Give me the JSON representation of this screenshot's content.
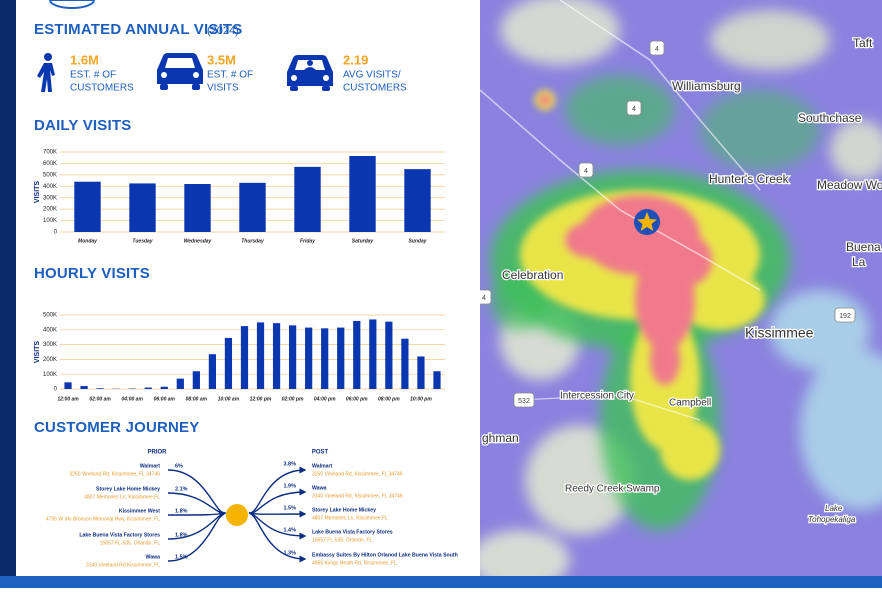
{
  "header": {
    "title": "ESTIMATED ANNUAL VISITS",
    "year": "(2024)"
  },
  "stats": [
    {
      "value": "1.6M",
      "label": [
        "EST. # OF",
        "CUSTOMERS"
      ]
    },
    {
      "value": "3.5M",
      "label": [
        "EST. # OF",
        "VISITS"
      ]
    },
    {
      "value": "2.19",
      "label": [
        "AVG VISITS/",
        "CUSTOMERS"
      ]
    }
  ],
  "chart_data": [
    {
      "type": "bar",
      "title": "DAILY VISITS",
      "y_label": "VISITS",
      "color": "#0a36b0",
      "grid": true,
      "categories": [
        "Monday",
        "Tuesday",
        "Wednesday",
        "Thursday",
        "Friday",
        "Saturday",
        "Sunday"
      ],
      "values": [
        440000,
        425000,
        420000,
        430000,
        570000,
        665000,
        550000
      ],
      "ylim": [
        0,
        700000
      ],
      "yticks": [
        0,
        {
          "value": 100000,
          "label": "100K"
        },
        {
          "value": 200000,
          "label": "200K"
        },
        {
          "value": 300000,
          "label": "300K"
        },
        {
          "value": 400000,
          "label": "400K"
        },
        {
          "value": 500000,
          "label": "500K"
        },
        {
          "value": 600000,
          "label": "600K"
        },
        {
          "value": 700000,
          "label": "700K"
        }
      ]
    },
    {
      "type": "bar",
      "title": "HOURLY VISITS",
      "y_label": "VISITS",
      "color": "#0a36b0",
      "grid": true,
      "categories": [
        "12:00 am",
        null,
        "02:00 am",
        null,
        "04:00 am",
        null,
        "06:00 am",
        null,
        "08:00 am",
        null,
        "10:00 am",
        null,
        "12:00 pm",
        null,
        "02:00 pm",
        null,
        "04:00 pm",
        null,
        "06:00 pm",
        null,
        "08:00 pm",
        null,
        "10:00 pm",
        null
      ],
      "values": [
        45000,
        20000,
        5000,
        2000,
        3000,
        10000,
        15000,
        70000,
        120000,
        235000,
        345000,
        425000,
        450000,
        445000,
        430000,
        415000,
        410000,
        415000,
        460000,
        470000,
        455000,
        340000,
        220000,
        120000
      ],
      "ylim": [
        0,
        500000
      ],
      "yticks": [
        0,
        {
          "value": 100000,
          "label": "100K"
        },
        {
          "value": 200000,
          "label": "200K"
        },
        {
          "value": 300000,
          "label": "300K"
        },
        {
          "value": 400000,
          "label": "400K"
        },
        {
          "value": 500000,
          "label": "500K"
        }
      ]
    }
  ],
  "journey": {
    "title": "CUSTOMER JOURNEY",
    "prior_label": "PRIOR",
    "post_label": "POST",
    "prior": [
      {
        "name": "Walmart",
        "address": "3250 Vineland Rd, Kissimmee, FL 34746",
        "share": "6%"
      },
      {
        "name": "Storey Lake Home Mickey",
        "address": "4807 Memories Ln, Kissimmee,FL",
        "share": "2.1%"
      },
      {
        "name": "Kissimmee West",
        "address": "4795 W Irlo Bronson Memorial Hwy, Kissimmee, FL",
        "share": "1.8%"
      },
      {
        "name": "Lake Buena Vista Factory Stores",
        "address": "15657 FL-535, Orlando, FL",
        "share": "1.8%"
      },
      {
        "name": "Wawa",
        "address": "3140 Vineland Rd Kissimmee, FL",
        "share": "1.5%"
      }
    ],
    "post": [
      {
        "name": "Walmart",
        "address": "3250 Vineland Rd, Kissimmee, FL 34746",
        "share": "3.8%"
      },
      {
        "name": "Wawa",
        "address": "3140 Vineland Rd, Kissimmee, FL 34746",
        "share": "1.9%"
      },
      {
        "name": "Storey Lake Home Mickey",
        "address": "4807 Memories Ln, Kissimmee,FL",
        "share": "1.5%"
      },
      {
        "name": "Lake Buena Vista Factory Stores",
        "address": "15657 FL-535, Orlando, FL",
        "share": "1.4%"
      },
      {
        "name": "Embassy Suites By Hilton Orlanod Lake Buena Vista South",
        "address": "4955 Kyngs Heath Rd, Kissimmee, FL",
        "share": "1.3%"
      }
    ]
  },
  "map": {
    "labels": [
      "Taft",
      "Williamsburg",
      "Southchase",
      "Hunter's Creek",
      "Meadow Wo",
      "Buena",
      "La",
      "Celebration",
      "Kissimmee",
      "Intercession City",
      "Campbell",
      "ghman",
      "Reedy Creek Swamp",
      "Lake",
      "Tohopekaliga"
    ],
    "shields": [
      "4",
      "4",
      "4",
      "4",
      "192",
      "532"
    ]
  }
}
